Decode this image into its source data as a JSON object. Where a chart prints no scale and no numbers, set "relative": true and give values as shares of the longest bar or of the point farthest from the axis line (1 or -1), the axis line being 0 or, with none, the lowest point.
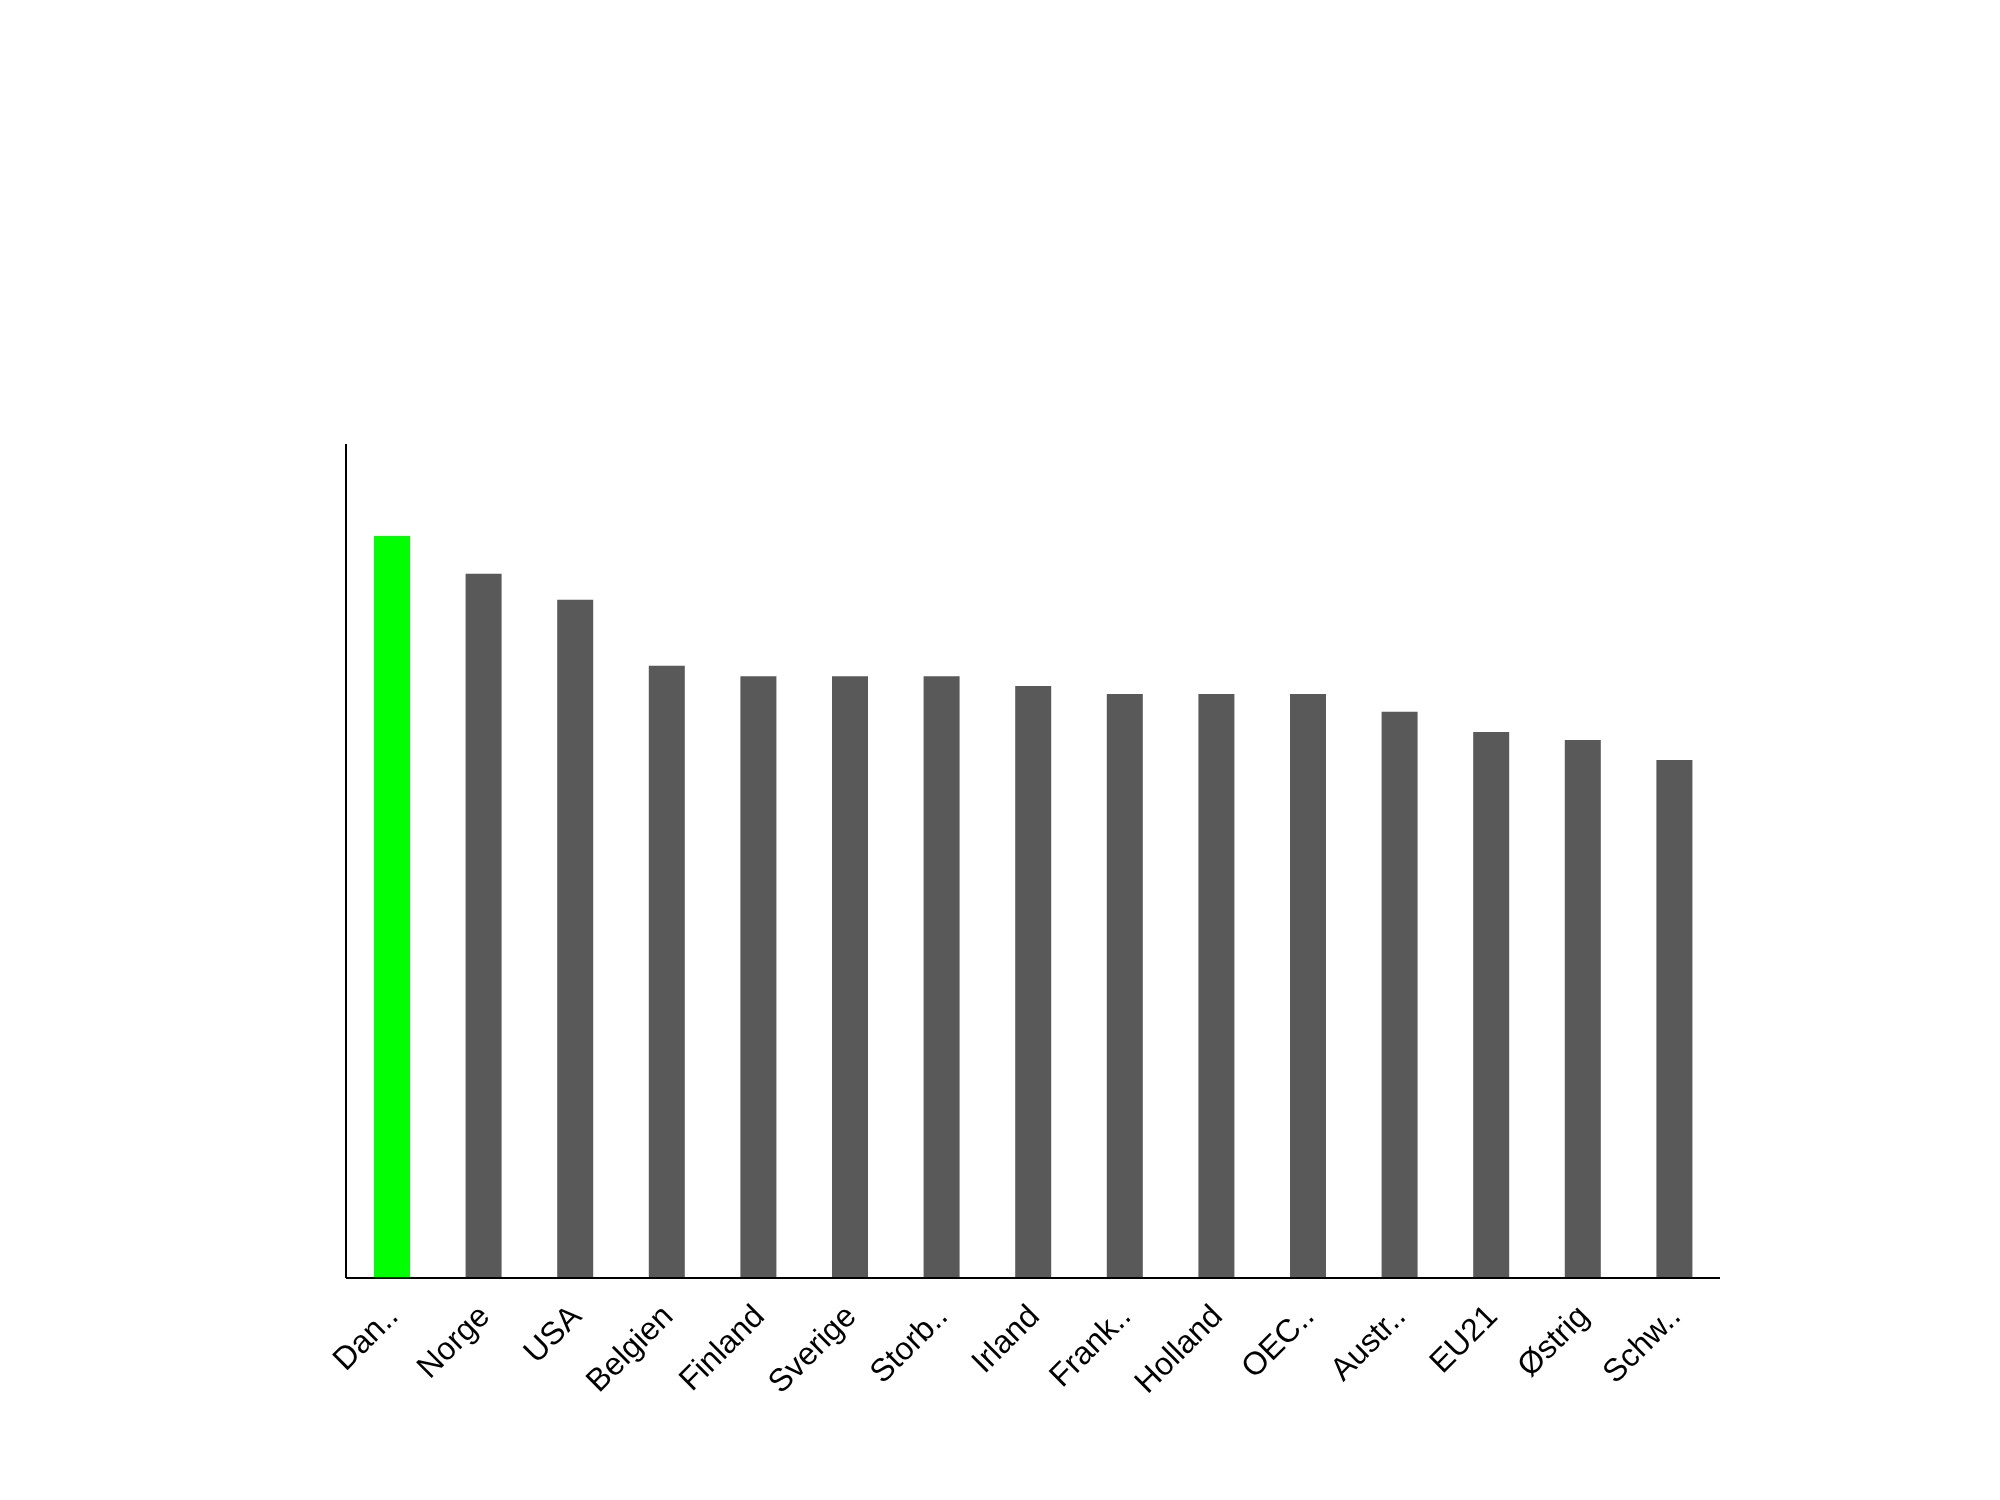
{
  "chart_data": {
    "type": "bar",
    "relative": true,
    "categories": [
      "Dan..",
      "Norge",
      "USA",
      "Belgien",
      "Finland",
      "Sverige",
      "Storb..",
      "Irland",
      "Frank..",
      "Holland",
      "OEC..",
      "Austr..",
      "EU21",
      "Østrig",
      "Schw.."
    ],
    "values": [
      1,
      0.949,
      0.914,
      0.825,
      0.811,
      0.811,
      0.811,
      0.798,
      0.787,
      0.787,
      0.787,
      0.763,
      0.736,
      0.725,
      0.698
    ],
    "colors": [
      "#00ff00",
      "#595959",
      "#595959",
      "#595959",
      "#595959",
      "#595959",
      "#595959",
      "#595959",
      "#595959",
      "#595959",
      "#595959",
      "#595959",
      "#595959",
      "#595959",
      "#595959"
    ],
    "grid": false,
    "legend": false
  }
}
